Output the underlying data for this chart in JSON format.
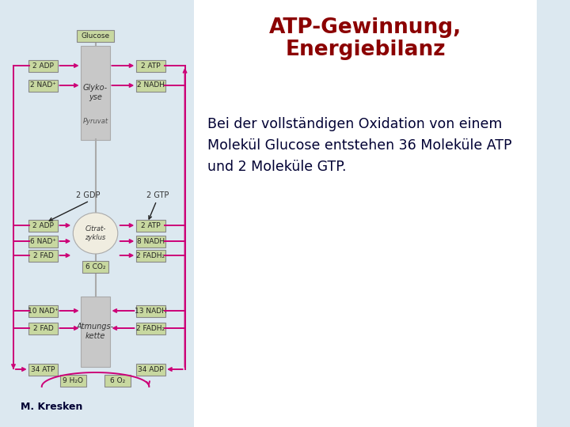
{
  "title_line1": "ATP-Gewinnung,",
  "title_line2": "Energiebilanz",
  "title_color": "#8B0000",
  "body_text": "Bei der vollständigen Oxidation von einem\nMolekül Glucose entstehen 36 Moleküle ATP\nund 2 Moleküle GTP.",
  "body_text_color": "#000033",
  "bg_color": "#dce8f0",
  "right_bg_color": "#ffffff",
  "box_color": "#c8d8a0",
  "box_edge_color": "#888888",
  "arrow_color": "#cc0077",
  "gray_block_color": "#c8c8c8",
  "gray_block_edge": "#aaaaaa",
  "circle_color": "#f0ede0",
  "credit_text": "M. Kresken",
  "credit_color": "#000033",
  "labels": {
    "glucose": "Glucose",
    "glykolyse": "Glyko-\nyse",
    "pyruvat": "Pyruvat",
    "citrat": "Citrat-\nzyklus",
    "atmungs": "Atmungs-\nkette",
    "2adp_top": "2 ADP",
    "2atp_top": "2 ATP",
    "2nad_top": "2 NAD⁺",
    "2nadh_top": "2 NADH",
    "2adp_mid": "2 ADP",
    "2atp_mid": "2 ATP",
    "6nad_mid": "6 NAD⁺",
    "8nadh_mid": "8 NADH",
    "2fad_mid": "2 FAD",
    "2fadh2_mid": "2 FADH₂",
    "6co2": "6 CO₂",
    "10nad_bot": "10 NAD⁺",
    "2fad_bot": "2 FAD",
    "13nadh_bot": "13 NADH",
    "2fadh2_bot": "2 FADH₂",
    "34atp_bot": "34 ATP",
    "34adp_bot": "34 ADP",
    "9h2o": "9 H₂O",
    "6o2": "6 O₂",
    "2gdp": "2 GDP",
    "2gtp": "2 GTP"
  }
}
